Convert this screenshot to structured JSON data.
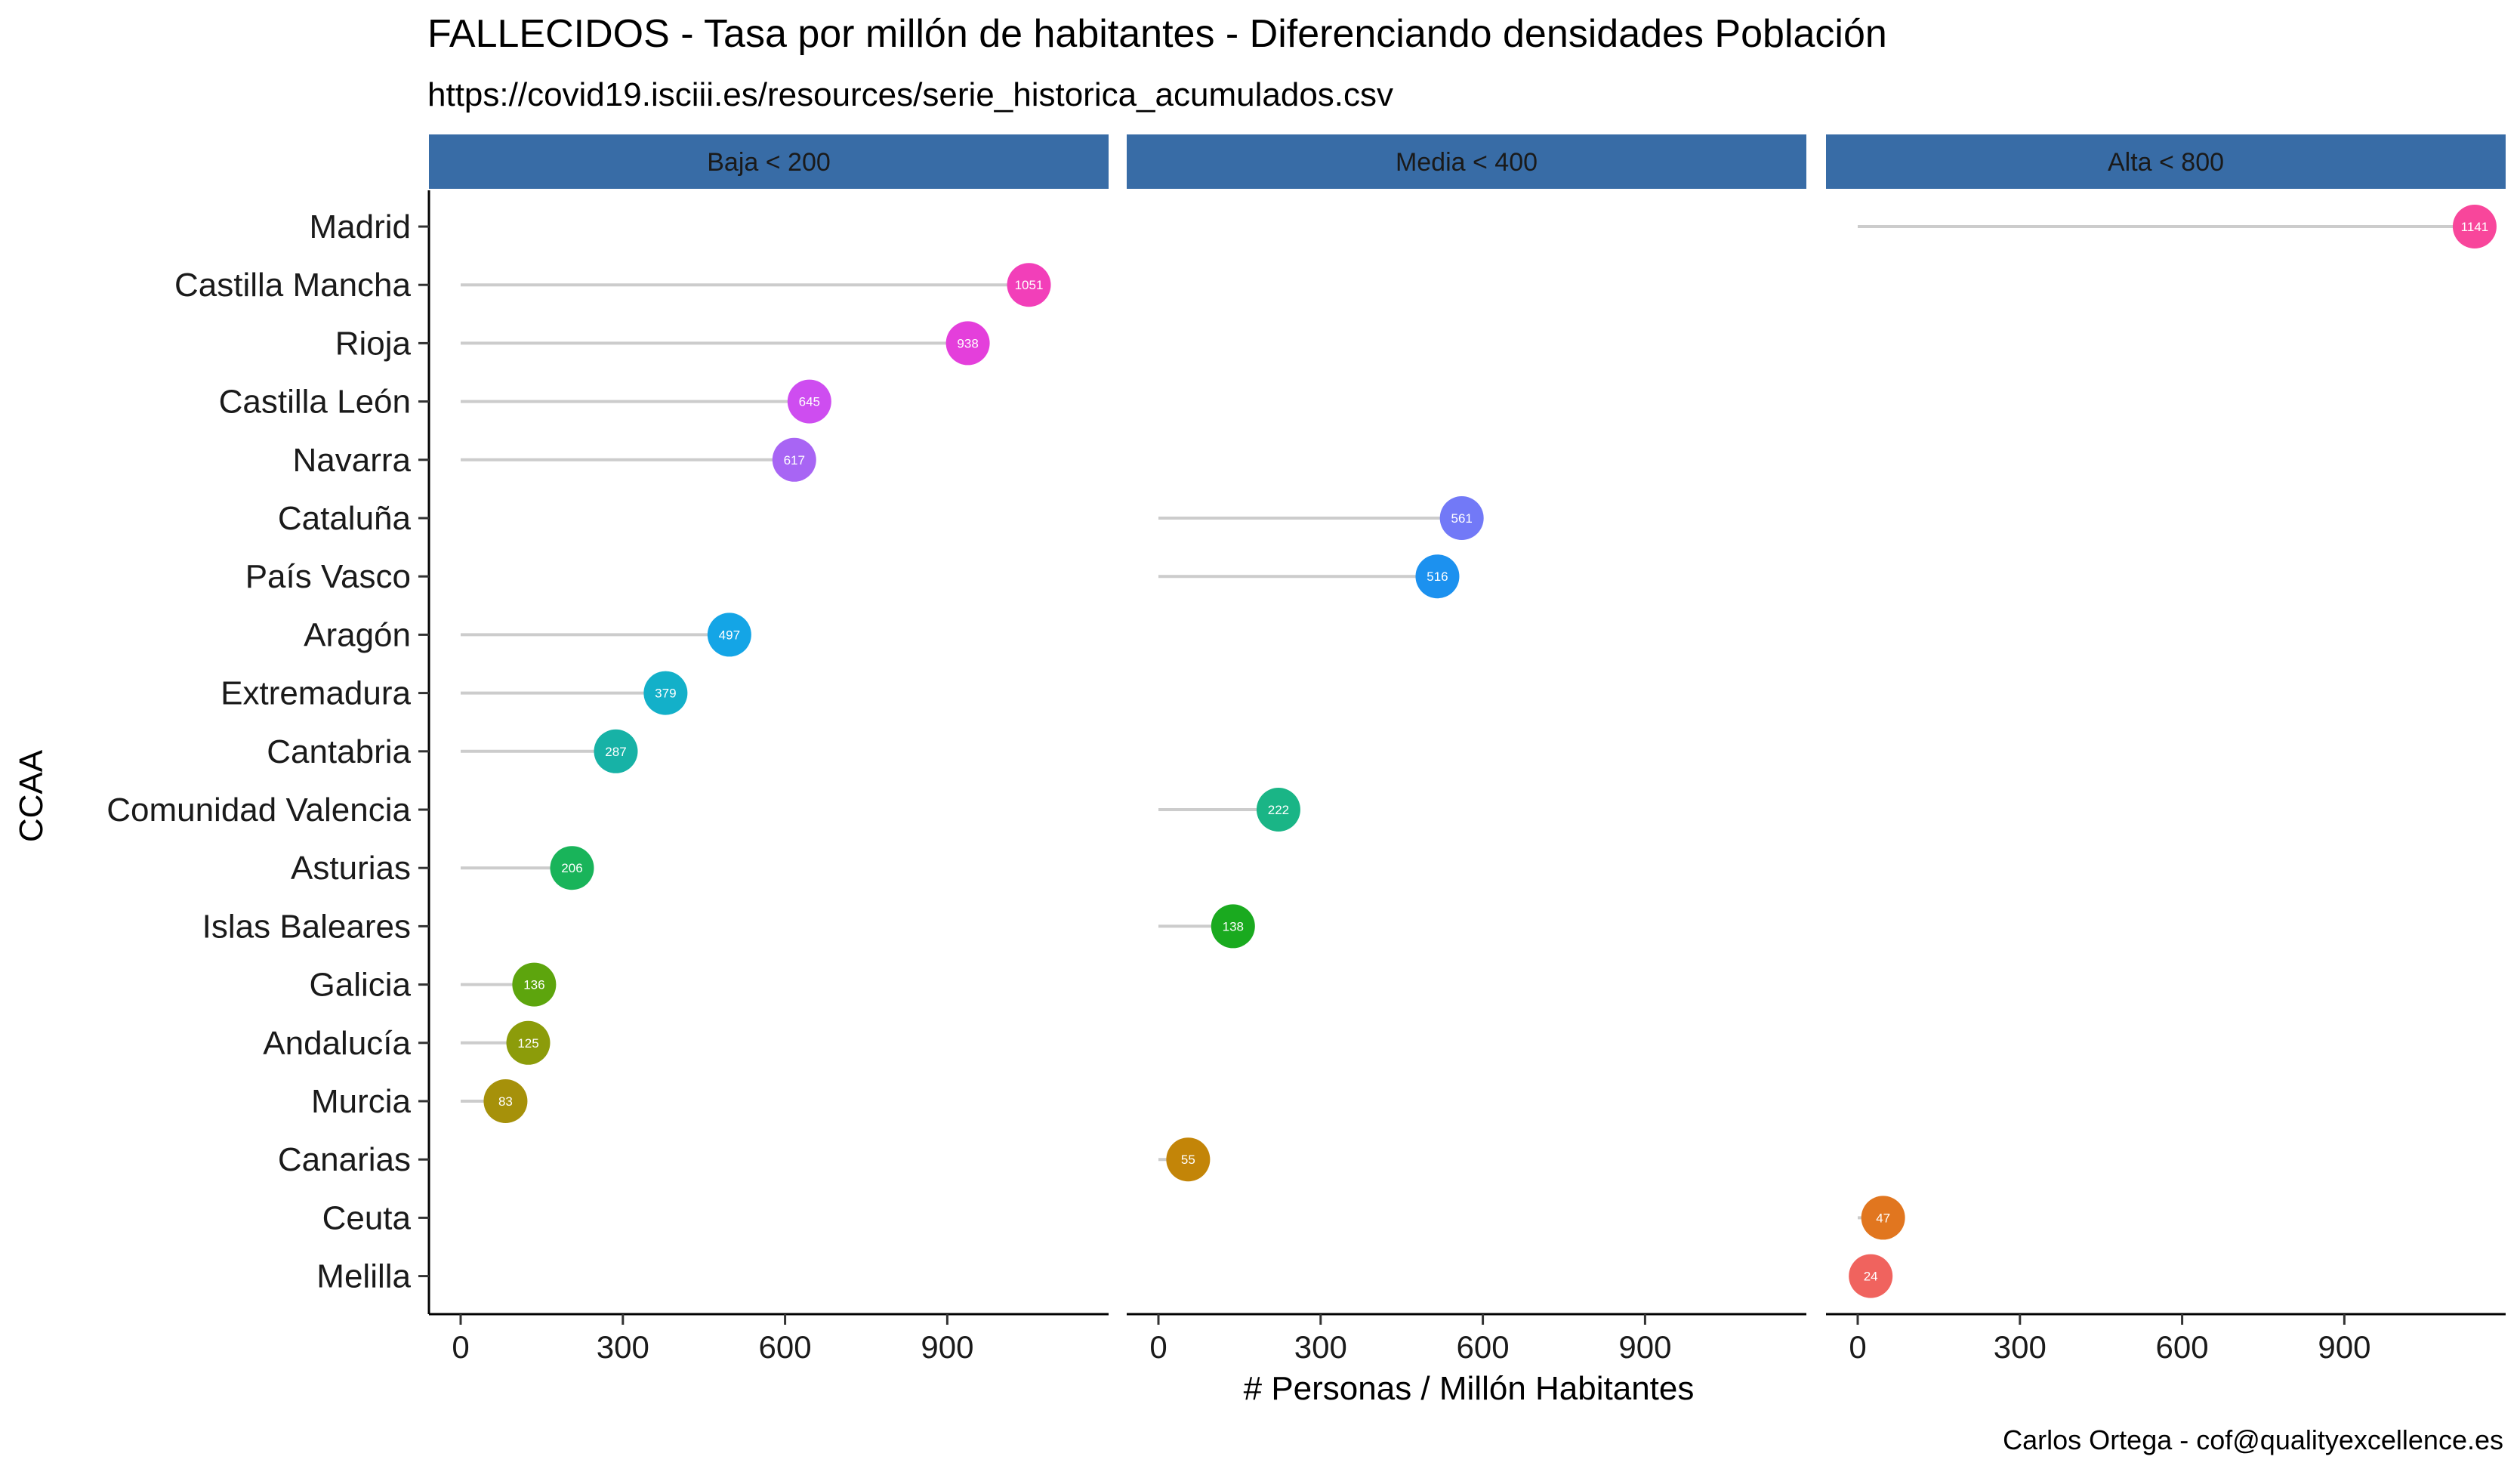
{
  "chart_data": {
    "type": "lollipop",
    "title": "FALLECIDOS - Tasa por millón de habitantes - Diferenciando densidades Población",
    "subtitle": "https://covid19.isciii.es/resources/serie_historica_acumulados.csv",
    "xlabel": "# Personas / Millón Habitantes",
    "ylabel": "CCAA",
    "caption": "Carlos Ortega - cof@qualityexcellence.es",
    "xlim": [
      0,
      1141
    ],
    "x_ticks": [
      "0",
      "300",
      "600",
      "900"
    ],
    "x_tick_values": [
      0,
      300,
      600,
      900
    ],
    "grid": false,
    "legend": "none",
    "panels": [
      "Baja < 200",
      "Media < 400",
      "Alta < 800"
    ],
    "categories": [
      "Madrid",
      "Castilla Mancha",
      "Rioja",
      "Castilla León",
      "Navarra",
      "Cataluña",
      "País Vasco",
      "Aragón",
      "Extremadura",
      "Cantabria",
      "Comunidad Valencia",
      "Asturias",
      "Islas Baleares",
      "Galicia",
      "Andalucía",
      "Murcia",
      "Canarias",
      "Ceuta",
      "Melilla"
    ],
    "points": [
      {
        "region": "Madrid",
        "panel": 2,
        "value": 1141,
        "color": "#F8469B"
      },
      {
        "region": "Castilla Mancha",
        "panel": 0,
        "value": 1051,
        "color": "#F23FB9"
      },
      {
        "region": "Rioja",
        "panel": 0,
        "value": 938,
        "color": "#E43FDB"
      },
      {
        "region": "Castilla León",
        "panel": 0,
        "value": 645,
        "color": "#CE4DF0"
      },
      {
        "region": "Navarra",
        "panel": 0,
        "value": 617,
        "color": "#A865F4"
      },
      {
        "region": "Cataluña",
        "panel": 1,
        "value": 561,
        "color": "#7279F7"
      },
      {
        "region": "País Vasco",
        "panel": 1,
        "value": 516,
        "color": "#1C91EF"
      },
      {
        "region": "Aragón",
        "panel": 0,
        "value": 497,
        "color": "#14A5E6"
      },
      {
        "region": "Extremadura",
        "panel": 0,
        "value": 379,
        "color": "#13B0C9"
      },
      {
        "region": "Cantabria",
        "panel": 0,
        "value": 287,
        "color": "#17B2A6"
      },
      {
        "region": "Comunidad Valencia",
        "panel": 1,
        "value": 222,
        "color": "#1AB586"
      },
      {
        "region": "Asturias",
        "panel": 0,
        "value": 206,
        "color": "#19B45A"
      },
      {
        "region": "Islas Baleares",
        "panel": 1,
        "value": 138,
        "color": "#1AAA1F"
      },
      {
        "region": "Galicia",
        "panel": 0,
        "value": 136,
        "color": "#5DA50D"
      },
      {
        "region": "Andalucía",
        "panel": 0,
        "value": 125,
        "color": "#8C9C0A"
      },
      {
        "region": "Murcia",
        "panel": 0,
        "value": 83,
        "color": "#A6910A"
      },
      {
        "region": "Canarias",
        "panel": 1,
        "value": 55,
        "color": "#C38508"
      },
      {
        "region": "Ceuta",
        "panel": 2,
        "value": 47,
        "color": "#E1761F"
      },
      {
        "region": "Melilla",
        "panel": 2,
        "value": 24,
        "color": "#F0635E"
      }
    ],
    "strip_color": "#386CA6",
    "segment_color": "#CCCCCC"
  }
}
